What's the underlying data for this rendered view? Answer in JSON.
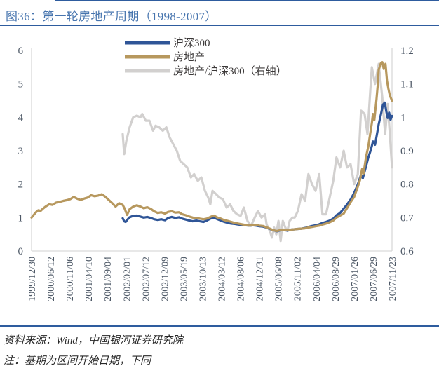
{
  "figure": {
    "title": "图36：第一轮房地产周期（1998-2007）"
  },
  "footer": {
    "source": "资料来源：Wind，中国银河证券研究院",
    "note": "注：基期为区间开始日期，下同"
  },
  "colors": {
    "accent_rule": "#2E5C9E",
    "title_text": "#4674AE",
    "axis_text": "#4D5866",
    "axis_line": "#D9D9D9",
    "legend_text": "#3B3838",
    "footer_text": "#262626",
    "csi300": "#2F5597",
    "real_estate": "#B7985E",
    "ratio": "#D2D0CF"
  },
  "chart_data": {
    "type": "line",
    "title": "第一轮房地产周期（1998-2007）",
    "grid": false,
    "legend_position": "top-center",
    "x_tick_labels": [
      "1999/12/30",
      "2000/06/12",
      "2000/11/06",
      "2001/04/10",
      "2001/09/04",
      "2002/02/01",
      "2002/07/12",
      "2002/12/09",
      "2003/05/19",
      "2003/10/13",
      "2004/03/12",
      "2004/08/06",
      "2004/12/31",
      "2005/06/08",
      "2005/11/02",
      "2006/04/04",
      "2006/08/29",
      "2007/01/26",
      "2007/06/29",
      "2007/11/23"
    ],
    "left_axis": {
      "min": 0,
      "max": 6,
      "tick_labels": [
        "0",
        "1",
        "2",
        "3",
        "4",
        "5",
        "6"
      ]
    },
    "right_axis": {
      "min": 0.6,
      "max": 1.2,
      "tick_labels": [
        "0.6",
        "0.7",
        "0.8",
        "0.9",
        "1",
        "1.1",
        "1.2"
      ]
    },
    "legend": [
      {
        "id": "csi300",
        "label": "沪深300"
      },
      {
        "id": "real_estate",
        "label": "房地产"
      },
      {
        "id": "ratio",
        "label": "房地产/沪深300（右轴）"
      }
    ],
    "series": [
      {
        "id": "ratio",
        "name": "房地产/沪深300（右轴）",
        "axis": "right",
        "points": [
          [
            0.253,
            0.95
          ],
          [
            0.257,
            0.89
          ],
          [
            0.263,
            0.93
          ],
          [
            0.272,
            0.97
          ],
          [
            0.282,
            1.0
          ],
          [
            0.292,
            1.005
          ],
          [
            0.302,
            1.0
          ],
          [
            0.307,
            1.01
          ],
          [
            0.317,
            0.99
          ],
          [
            0.327,
            0.99
          ],
          [
            0.337,
            0.96
          ],
          [
            0.344,
            0.975
          ],
          [
            0.354,
            0.97
          ],
          [
            0.364,
            0.96
          ],
          [
            0.374,
            0.97
          ],
          [
            0.383,
            0.94
          ],
          [
            0.393,
            0.92
          ],
          [
            0.403,
            0.9
          ],
          [
            0.412,
            0.87
          ],
          [
            0.422,
            0.86
          ],
          [
            0.432,
            0.85
          ],
          [
            0.442,
            0.82
          ],
          [
            0.451,
            0.83
          ],
          [
            0.461,
            0.81
          ],
          [
            0.471,
            0.82
          ],
          [
            0.481,
            0.78
          ],
          [
            0.49,
            0.76
          ],
          [
            0.496,
            0.74
          ],
          [
            0.502,
            0.78
          ],
          [
            0.512,
            0.77
          ],
          [
            0.521,
            0.76
          ],
          [
            0.531,
            0.755
          ],
          [
            0.541,
            0.73
          ],
          [
            0.551,
            0.74
          ],
          [
            0.56,
            0.72
          ],
          [
            0.57,
            0.71
          ],
          [
            0.58,
            0.705
          ],
          [
            0.589,
            0.73
          ],
          [
            0.599,
            0.69
          ],
          [
            0.609,
            0.675
          ],
          [
            0.619,
            0.7
          ],
          [
            0.628,
            0.72
          ],
          [
            0.638,
            0.7
          ],
          [
            0.648,
            0.71
          ],
          [
            0.652,
            0.68
          ],
          [
            0.661,
            0.66
          ],
          [
            0.667,
            0.64
          ],
          [
            0.673,
            0.67
          ],
          [
            0.679,
            0.65
          ],
          [
            0.685,
            0.69
          ],
          [
            0.691,
            0.63
          ],
          [
            0.697,
            0.69
          ],
          [
            0.704,
            0.67
          ],
          [
            0.71,
            0.66
          ],
          [
            0.716,
            0.69
          ],
          [
            0.724,
            0.7
          ],
          [
            0.73,
            0.7
          ],
          [
            0.739,
            0.72
          ],
          [
            0.749,
            0.77
          ],
          [
            0.759,
            0.75
          ],
          [
            0.768,
            0.83
          ],
          [
            0.778,
            0.8
          ],
          [
            0.788,
            0.78
          ],
          [
            0.798,
            0.83
          ],
          [
            0.807,
            0.71
          ],
          [
            0.817,
            0.71
          ],
          [
            0.827,
            0.76
          ],
          [
            0.837,
            0.81
          ],
          [
            0.846,
            0.88
          ],
          [
            0.856,
            0.85
          ],
          [
            0.866,
            0.9
          ],
          [
            0.875,
            0.85
          ],
          [
            0.885,
            0.86
          ],
          [
            0.895,
            0.8
          ],
          [
            0.905,
            0.83
          ],
          [
            0.914,
            1.02
          ],
          [
            0.924,
            1.01
          ],
          [
            0.932,
            0.95
          ],
          [
            0.944,
            1.15
          ],
          [
            0.953,
            1.1
          ],
          [
            0.963,
            1.16
          ],
          [
            0.973,
            1.06
          ],
          [
            0.981,
            0.95
          ],
          [
            0.988,
            1.04
          ],
          [
            0.994,
            0.95
          ],
          [
            1.0,
            0.85
          ]
        ]
      },
      {
        "id": "csi300",
        "name": "沪深300",
        "axis": "left",
        "points": [
          [
            0.253,
            0.98
          ],
          [
            0.257,
            0.89
          ],
          [
            0.261,
            0.87
          ],
          [
            0.266,
            0.94
          ],
          [
            0.272,
            1.01
          ],
          [
            0.282,
            1.05
          ],
          [
            0.292,
            1.06
          ],
          [
            0.302,
            1.03
          ],
          [
            0.311,
            1.0
          ],
          [
            0.321,
            1.02
          ],
          [
            0.331,
            0.99
          ],
          [
            0.34,
            0.95
          ],
          [
            0.35,
            0.93
          ],
          [
            0.36,
            0.95
          ],
          [
            0.37,
            0.92
          ],
          [
            0.379,
            0.99
          ],
          [
            0.389,
            1.02
          ],
          [
            0.399,
            0.99
          ],
          [
            0.409,
            1.01
          ],
          [
            0.418,
            0.97
          ],
          [
            0.428,
            0.94
          ],
          [
            0.438,
            0.91
          ],
          [
            0.447,
            0.89
          ],
          [
            0.457,
            0.91
          ],
          [
            0.467,
            0.89
          ],
          [
            0.477,
            0.87
          ],
          [
            0.486,
            0.91
          ],
          [
            0.496,
            0.97
          ],
          [
            0.506,
            1.0
          ],
          [
            0.516,
            0.95
          ],
          [
            0.525,
            0.91
          ],
          [
            0.535,
            0.87
          ],
          [
            0.545,
            0.84
          ],
          [
            0.554,
            0.82
          ],
          [
            0.564,
            0.81
          ],
          [
            0.574,
            0.79
          ],
          [
            0.584,
            0.78
          ],
          [
            0.593,
            0.77
          ],
          [
            0.603,
            0.76
          ],
          [
            0.613,
            0.77
          ],
          [
            0.623,
            0.76
          ],
          [
            0.632,
            0.74
          ],
          [
            0.642,
            0.73
          ],
          [
            0.652,
            0.7
          ],
          [
            0.661,
            0.66
          ],
          [
            0.671,
            0.62
          ],
          [
            0.681,
            0.59
          ],
          [
            0.691,
            0.62
          ],
          [
            0.7,
            0.63
          ],
          [
            0.71,
            0.61
          ],
          [
            0.72,
            0.64
          ],
          [
            0.73,
            0.65
          ],
          [
            0.739,
            0.66
          ],
          [
            0.749,
            0.67
          ],
          [
            0.759,
            0.69
          ],
          [
            0.768,
            0.72
          ],
          [
            0.778,
            0.75
          ],
          [
            0.788,
            0.77
          ],
          [
            0.798,
            0.8
          ],
          [
            0.807,
            0.84
          ],
          [
            0.817,
            0.87
          ],
          [
            0.827,
            0.91
          ],
          [
            0.837,
            0.97
          ],
          [
            0.846,
            1.07
          ],
          [
            0.856,
            1.14
          ],
          [
            0.866,
            1.27
          ],
          [
            0.875,
            1.39
          ],
          [
            0.885,
            1.54
          ],
          [
            0.895,
            1.74
          ],
          [
            0.905,
            1.99
          ],
          [
            0.914,
            2.28
          ],
          [
            0.919,
            2.18
          ],
          [
            0.928,
            2.54
          ],
          [
            0.934,
            2.79
          ],
          [
            0.94,
            2.99
          ],
          [
            0.944,
            3.14
          ],
          [
            0.947,
            3.28
          ],
          [
            0.953,
            3.18
          ],
          [
            0.959,
            3.54
          ],
          [
            0.963,
            3.79
          ],
          [
            0.969,
            4.08
          ],
          [
            0.975,
            4.38
          ],
          [
            0.98,
            4.44
          ],
          [
            0.984,
            4.18
          ],
          [
            0.988,
            3.98
          ],
          [
            0.992,
            4.14
          ],
          [
            0.996,
            3.93
          ],
          [
            1.0,
            4.04
          ]
        ]
      },
      {
        "id": "real_estate",
        "name": "房地产",
        "axis": "left",
        "points": [
          [
            0.0,
            1.0
          ],
          [
            0.006,
            1.08
          ],
          [
            0.012,
            1.16
          ],
          [
            0.019,
            1.22
          ],
          [
            0.025,
            1.2
          ],
          [
            0.031,
            1.26
          ],
          [
            0.039,
            1.33
          ],
          [
            0.049,
            1.4
          ],
          [
            0.058,
            1.38
          ],
          [
            0.068,
            1.45
          ],
          [
            0.078,
            1.47
          ],
          [
            0.088,
            1.5
          ],
          [
            0.097,
            1.52
          ],
          [
            0.107,
            1.55
          ],
          [
            0.117,
            1.62
          ],
          [
            0.126,
            1.57
          ],
          [
            0.136,
            1.53
          ],
          [
            0.146,
            1.57
          ],
          [
            0.156,
            1.6
          ],
          [
            0.165,
            1.67
          ],
          [
            0.175,
            1.64
          ],
          [
            0.185,
            1.66
          ],
          [
            0.195,
            1.7
          ],
          [
            0.204,
            1.63
          ],
          [
            0.214,
            1.53
          ],
          [
            0.224,
            1.43
          ],
          [
            0.233,
            1.33
          ],
          [
            0.243,
            1.43
          ],
          [
            0.253,
            1.38
          ],
          [
            0.259,
            1.25
          ],
          [
            0.265,
            1.08
          ],
          [
            0.272,
            1.25
          ],
          [
            0.282,
            1.33
          ],
          [
            0.292,
            1.37
          ],
          [
            0.302,
            1.33
          ],
          [
            0.311,
            1.28
          ],
          [
            0.321,
            1.31
          ],
          [
            0.331,
            1.26
          ],
          [
            0.34,
            1.19
          ],
          [
            0.35,
            1.14
          ],
          [
            0.36,
            1.16
          ],
          [
            0.37,
            1.12
          ],
          [
            0.379,
            1.17
          ],
          [
            0.389,
            1.19
          ],
          [
            0.399,
            1.15
          ],
          [
            0.409,
            1.16
          ],
          [
            0.418,
            1.1
          ],
          [
            0.428,
            1.07
          ],
          [
            0.438,
            1.03
          ],
          [
            0.447,
            1.0
          ],
          [
            0.457,
            0.99
          ],
          [
            0.467,
            0.97
          ],
          [
            0.477,
            0.95
          ],
          [
            0.486,
            0.97
          ],
          [
            0.496,
            1.02
          ],
          [
            0.506,
            1.06
          ],
          [
            0.516,
            1.0
          ],
          [
            0.525,
            0.97
          ],
          [
            0.535,
            0.92
          ],
          [
            0.545,
            0.9
          ],
          [
            0.554,
            0.87
          ],
          [
            0.564,
            0.84
          ],
          [
            0.574,
            0.82
          ],
          [
            0.584,
            0.8
          ],
          [
            0.593,
            0.78
          ],
          [
            0.603,
            0.76
          ],
          [
            0.613,
            0.78
          ],
          [
            0.623,
            0.78
          ],
          [
            0.632,
            0.76
          ],
          [
            0.642,
            0.75
          ],
          [
            0.652,
            0.71
          ],
          [
            0.661,
            0.67
          ],
          [
            0.671,
            0.62
          ],
          [
            0.681,
            0.6
          ],
          [
            0.691,
            0.63
          ],
          [
            0.7,
            0.64
          ],
          [
            0.71,
            0.62
          ],
          [
            0.72,
            0.64
          ],
          [
            0.73,
            0.65
          ],
          [
            0.739,
            0.66
          ],
          [
            0.749,
            0.67
          ],
          [
            0.759,
            0.68
          ],
          [
            0.768,
            0.7
          ],
          [
            0.778,
            0.72
          ],
          [
            0.788,
            0.74
          ],
          [
            0.798,
            0.76
          ],
          [
            0.807,
            0.79
          ],
          [
            0.817,
            0.82
          ],
          [
            0.827,
            0.86
          ],
          [
            0.837,
            0.91
          ],
          [
            0.846,
            1.0
          ],
          [
            0.856,
            1.06
          ],
          [
            0.866,
            1.12
          ],
          [
            0.875,
            1.28
          ],
          [
            0.885,
            1.46
          ],
          [
            0.895,
            1.62
          ],
          [
            0.905,
            1.92
          ],
          [
            0.911,
            2.12
          ],
          [
            0.917,
            2.45
          ],
          [
            0.921,
            2.32
          ],
          [
            0.928,
            2.82
          ],
          [
            0.934,
            3.12
          ],
          [
            0.94,
            3.55
          ],
          [
            0.944,
            3.82
          ],
          [
            0.947,
            4.1
          ],
          [
            0.951,
            3.92
          ],
          [
            0.957,
            4.55
          ],
          [
            0.961,
            5.05
          ],
          [
            0.963,
            5.42
          ],
          [
            0.969,
            5.62
          ],
          [
            0.973,
            5.65
          ],
          [
            0.977,
            5.45
          ],
          [
            0.982,
            5.6
          ],
          [
            0.986,
            5.1
          ],
          [
            0.99,
            4.85
          ],
          [
            0.994,
            4.65
          ],
          [
            1.0,
            4.5
          ]
        ]
      }
    ]
  }
}
